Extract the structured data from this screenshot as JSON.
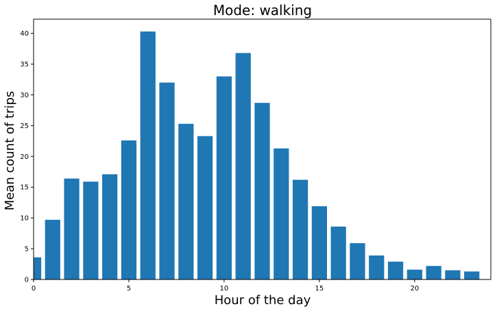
{
  "chart_data": {
    "type": "bar",
    "title": "Mode: walking",
    "xlabel": "Hour of the day",
    "ylabel": "Mean count of trips",
    "x": [
      0,
      1,
      2,
      3,
      4,
      5,
      6,
      7,
      8,
      9,
      10,
      11,
      12,
      13,
      14,
      15,
      16,
      17,
      18,
      19,
      20,
      21,
      22,
      23
    ],
    "values": [
      3.6,
      9.7,
      16.4,
      15.9,
      17.1,
      22.6,
      40.3,
      32.0,
      25.3,
      23.3,
      33.0,
      36.8,
      28.7,
      21.3,
      16.2,
      11.9,
      8.6,
      5.9,
      3.9,
      2.9,
      1.6,
      2.2,
      1.5,
      1.3
    ],
    "xlim": [
      0,
      24
    ],
    "ylim": [
      0,
      42.3
    ],
    "xticks": [
      0,
      5,
      10,
      15,
      20
    ],
    "yticks": [
      0,
      5,
      10,
      15,
      20,
      25,
      30,
      35,
      40
    ],
    "bar_color": "#1f77b4",
    "grid": false,
    "legend": "none"
  }
}
